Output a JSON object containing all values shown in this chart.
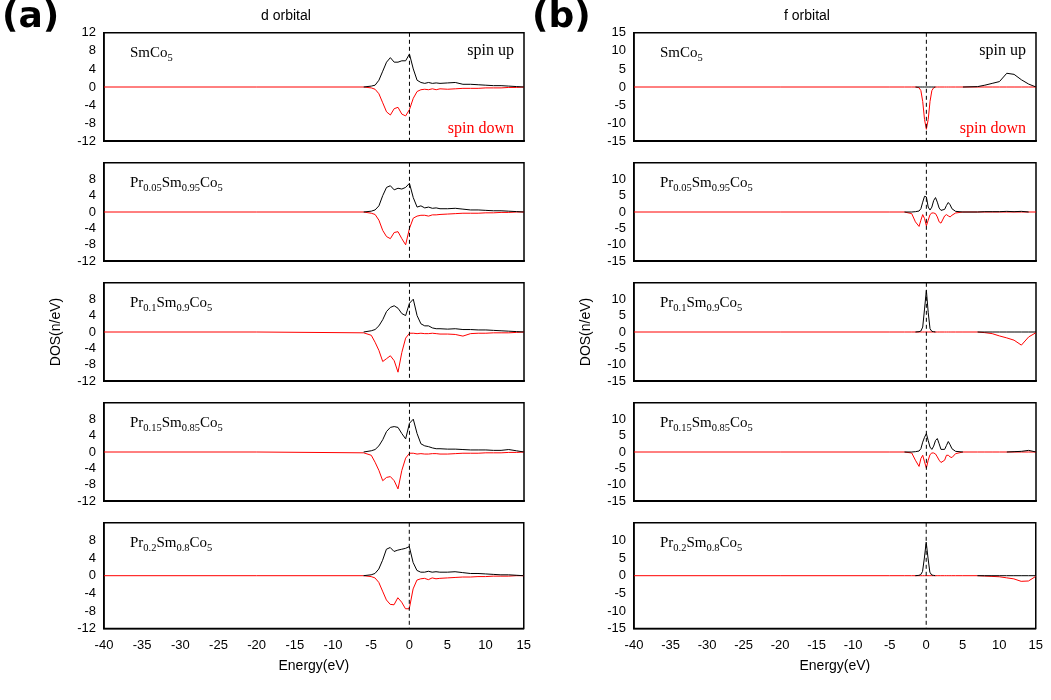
{
  "chart_data": [
    {
      "type": "line",
      "title": "d orbital",
      "annotations": [
        "(a)",
        "SmCo$_{5}$"
      ],
      "tick_labels": "y",
      "xlim": [
        -40,
        15
      ],
      "xticks": [
        -40,
        -35,
        -30,
        -25,
        -20,
        -15,
        -10,
        -5,
        0,
        5,
        10,
        15
      ],
      "ylim": [
        -12,
        12
      ],
      "yticks": [
        -12,
        -8,
        -4,
        0,
        4,
        8,
        12
      ],
      "ref_lines": [
        {
          "axis": "x",
          "value": 0,
          "line_style": "dashed",
          "color": "#000000"
        }
      ],
      "x": [
        -40,
        -20,
        -6,
        -5,
        -4.5,
        -4,
        -3.5,
        -3,
        -2.5,
        -2,
        -1.5,
        -1,
        -0.5,
        0,
        0.5,
        1,
        1.5,
        2,
        2.5,
        3,
        3.5,
        4,
        5,
        6,
        7,
        8,
        9,
        10,
        11,
        12,
        13,
        14,
        15
      ],
      "series": [
        {
          "name": "spin up",
          "color": "#000000",
          "values": [
            null,
            null,
            0,
            0.2,
            0.4,
            1.5,
            3.5,
            5.5,
            6.5,
            5.5,
            5.5,
            5.8,
            5.8,
            7.3,
            4,
            1.5,
            1,
            0.8,
            1,
            0.8,
            0.9,
            0.8,
            0.9,
            1,
            0.6,
            0.6,
            0.5,
            0.4,
            0.3,
            0.3,
            0.2,
            0.1,
            0
          ]
        },
        {
          "name": "spin down",
          "color": "#ff0000",
          "values": [
            0,
            0,
            0,
            -0.2,
            -0.5,
            -1.5,
            -3.5,
            -5.5,
            -6.2,
            -4.8,
            -4.5,
            -6,
            -6.4,
            -5,
            -2.5,
            -1,
            -0.6,
            -0.5,
            -0.6,
            -0.4,
            -0.6,
            -0.4,
            -0.5,
            -0.4,
            -0.3,
            -0.3,
            -0.3,
            -0.2,
            -0.2,
            -0.2,
            -0.1,
            -0.1,
            0
          ]
        }
      ]
    },
    {
      "type": "line",
      "annotations": [
        "Pr$_{0.05}$Sm$_{0.95}$Co$_{5}$"
      ],
      "tick_labels": "y",
      "xlim": [
        -40,
        15
      ],
      "xticks": [
        -40,
        -35,
        -30,
        -25,
        -20,
        -15,
        -10,
        -5,
        0,
        5,
        10,
        15
      ],
      "ylim": [
        -12,
        12
      ],
      "yticks": [
        -12,
        -8,
        -4,
        0,
        4,
        8
      ],
      "ref_lines": [
        {
          "axis": "x",
          "value": 0,
          "line_style": "dashed",
          "color": "#000000"
        }
      ],
      "x": [
        -40,
        -20,
        -6,
        -5,
        -4.5,
        -4,
        -3.5,
        -3,
        -2.5,
        -2,
        -1.5,
        -1,
        -0.5,
        0,
        0.5,
        1,
        1.5,
        2,
        2.5,
        3,
        3.5,
        4,
        5,
        6,
        7,
        8,
        9,
        10,
        11,
        12,
        13,
        14,
        15
      ],
      "series": [
        {
          "color": "#000000",
          "values": [
            null,
            null,
            0,
            0.2,
            0.5,
            1.5,
            4,
            6,
            6.4,
            5.4,
            5.8,
            5.6,
            6,
            7,
            3.5,
            1.2,
            1.5,
            1,
            1.2,
            0.9,
            1,
            0.8,
            0.8,
            0.9,
            0.7,
            0.5,
            0.5,
            0.4,
            0.3,
            0.3,
            0.2,
            0.1,
            0
          ]
        },
        {
          "color": "#ff0000",
          "values": [
            0,
            0,
            0,
            -0.3,
            -0.6,
            -2,
            -4.5,
            -6,
            -6.5,
            -5,
            -4.8,
            -6.5,
            -8,
            -4,
            -1.5,
            -1,
            -0.8,
            -0.8,
            -1,
            -0.7,
            -0.7,
            -0.6,
            -0.5,
            -0.4,
            -0.3,
            -0.3,
            -0.3,
            -0.2,
            -0.2,
            -0.1,
            -0.1,
            0,
            0
          ]
        }
      ]
    },
    {
      "type": "line",
      "ylabel": "DOS(n/eV)",
      "annotations": [
        "Pr$_{0.1}$Sm$_{0.9}$Co$_{5}$"
      ],
      "tick_labels": "y",
      "xlim": [
        -40,
        15
      ],
      "xticks": [
        -40,
        -35,
        -30,
        -25,
        -20,
        -15,
        -10,
        -5,
        0,
        5,
        10,
        15
      ],
      "ylim": [
        -12,
        12
      ],
      "yticks": [
        -12,
        -8,
        -4,
        0,
        4,
        8
      ],
      "ref_lines": [
        {
          "axis": "x",
          "value": 0,
          "line_style": "dashed",
          "color": "#000000"
        }
      ],
      "x": [
        -40,
        -20,
        -6,
        -5,
        -4.5,
        -4,
        -3.5,
        -3,
        -2.5,
        -2,
        -1.5,
        -1,
        -0.5,
        0,
        0.5,
        1,
        1.5,
        2,
        2.5,
        3,
        3.5,
        4,
        5,
        6,
        7,
        8,
        9,
        10,
        11,
        12,
        13,
        14,
        15
      ],
      "series": [
        {
          "color": "#000000",
          "values": [
            null,
            null,
            0,
            0.3,
            0.6,
            1.5,
            3,
            5,
            6,
            6.4,
            5.8,
            4.5,
            4,
            7,
            8,
            4,
            2,
            1.5,
            1.5,
            1,
            0.8,
            0.8,
            0.7,
            0.8,
            0.6,
            0.6,
            0.5,
            0.5,
            0.4,
            0.3,
            0.2,
            0.1,
            0
          ]
        },
        {
          "color": "#ff0000",
          "values": [
            0,
            0,
            -0.2,
            -0.8,
            -2.5,
            -4.5,
            -7.2,
            -6.5,
            -5.8,
            -7,
            -9.8,
            -5,
            -1.5,
            -0.3,
            -0.3,
            -0.4,
            -0.3,
            -0.4,
            -0.4,
            -0.3,
            -0.4,
            -0.5,
            -0.5,
            -0.6,
            -1,
            -0.4,
            -0.3,
            -0.3,
            -0.2,
            -0.2,
            -0.2,
            -0.1,
            0
          ]
        }
      ]
    },
    {
      "type": "line",
      "annotations": [
        "Pr$_{0.15}$Sm$_{0.85}$Co$_{5}$"
      ],
      "tick_labels": "y",
      "xlim": [
        -40,
        15
      ],
      "xticks": [
        -40,
        -35,
        -30,
        -25,
        -20,
        -15,
        -10,
        -5,
        0,
        5,
        10,
        15
      ],
      "ylim": [
        -12,
        12
      ],
      "yticks": [
        -12,
        -8,
        -4,
        0,
        4,
        8
      ],
      "ref_lines": [
        {
          "axis": "x",
          "value": 0,
          "line_style": "dashed",
          "color": "#000000"
        }
      ],
      "x": [
        -40,
        -20,
        -6,
        -5,
        -4.5,
        -4,
        -3.5,
        -3,
        -2.5,
        -2,
        -1.5,
        -1,
        -0.5,
        0,
        0.5,
        1,
        1.5,
        2,
        2.5,
        3,
        3.5,
        4,
        5,
        6,
        7,
        8,
        9,
        10,
        11,
        12,
        13,
        14,
        15
      ],
      "series": [
        {
          "color": "#000000",
          "values": [
            null,
            null,
            0,
            0.3,
            0.6,
            1.5,
            3,
            5,
            6,
            6.2,
            6,
            4.5,
            3.2,
            7,
            8,
            4.5,
            2,
            1.5,
            1.3,
            1,
            0.8,
            0.8,
            0.7,
            0.7,
            0.6,
            0.5,
            0.5,
            0.5,
            0.4,
            0.4,
            0.6,
            0.3,
            0
          ]
        },
        {
          "color": "#ff0000",
          "values": [
            0,
            0,
            -0.2,
            -0.8,
            -2.5,
            -4.5,
            -7,
            -6.2,
            -6,
            -7,
            -9,
            -4.5,
            -1.5,
            -0.3,
            -0.3,
            -0.5,
            -0.4,
            -0.5,
            -0.5,
            -0.4,
            -0.4,
            -0.5,
            -0.5,
            -0.4,
            -0.3,
            -0.3,
            -0.3,
            -0.2,
            -0.2,
            -0.2,
            -0.1,
            -0.1,
            0
          ]
        }
      ]
    },
    {
      "type": "line",
      "xlabel": "Energy(eV)",
      "annotations": [
        "Pr$_{0.2}$Sm$_{0.8}$Co$_{5}$"
      ],
      "xlim": [
        -40,
        15
      ],
      "xticks": [
        -40,
        -35,
        -30,
        -25,
        -20,
        -15,
        -10,
        -5,
        0,
        5,
        10,
        15
      ],
      "ylim": [
        -12,
        12
      ],
      "yticks": [
        -12,
        -8,
        -4,
        0,
        4,
        8
      ],
      "ref_lines": [
        {
          "axis": "x",
          "value": 0,
          "line_style": "dashed",
          "color": "#000000"
        }
      ],
      "x": [
        -40,
        -20,
        -6,
        -5,
        -4.5,
        -4,
        -3.5,
        -3,
        -2.5,
        -2,
        -1.5,
        -1,
        -0.5,
        0,
        0.5,
        1,
        1.5,
        2,
        2.5,
        3,
        3.5,
        4,
        5,
        6,
        7,
        8,
        9,
        10,
        11,
        12,
        13,
        14,
        15
      ],
      "series": [
        {
          "color": "#000000",
          "values": [
            null,
            null,
            0,
            0.2,
            0.5,
            1.5,
            3.5,
            6,
            6.4,
            5.5,
            5.8,
            6,
            6.2,
            6.6,
            3,
            1.2,
            0.8,
            0.8,
            1,
            0.8,
            0.9,
            0.8,
            0.8,
            0.9,
            0.7,
            0.5,
            0.5,
            0.4,
            0.3,
            0.2,
            0.2,
            0.1,
            0
          ]
        },
        {
          "color": "#ff0000",
          "values": [
            0,
            0,
            0,
            -0.2,
            -0.5,
            -1.5,
            -3.5,
            -5.5,
            -6.5,
            -6.6,
            -5,
            -6,
            -7.5,
            -7.5,
            -3,
            -1,
            -0.7,
            -0.6,
            -0.9,
            -0.5,
            -0.7,
            -0.6,
            -0.5,
            -0.4,
            -0.3,
            -0.3,
            -0.2,
            -0.2,
            -0.1,
            -0.1,
            -0.1,
            0,
            0
          ]
        }
      ]
    },
    {
      "type": "line",
      "title": "f orbital",
      "annotations": [
        "(b)",
        "SmCo$_{5}$"
      ],
      "tick_labels": "y",
      "xlim": [
        -40,
        15
      ],
      "xticks": [
        -40,
        -35,
        -30,
        -25,
        -20,
        -15,
        -10,
        -5,
        0,
        5,
        10,
        15
      ],
      "ylim": [
        -15,
        15
      ],
      "yticks": [
        -15,
        -10,
        -5,
        0,
        5,
        10,
        15
      ],
      "ref_lines": [
        {
          "axis": "x",
          "value": 0,
          "line_style": "dashed",
          "color": "#000000"
        }
      ],
      "x": [
        -40,
        -20,
        -5,
        -3,
        -2,
        -1.5,
        -1,
        -0.75,
        -0.5,
        -0.25,
        0,
        0.25,
        0.5,
        0.75,
        1,
        1.25,
        1.5,
        1.75,
        2,
        2.5,
        2.75,
        3,
        3.25,
        3.5,
        4,
        5,
        7,
        8,
        9,
        10,
        11,
        12,
        13,
        14,
        15
      ],
      "series": [
        {
          "name": "spin up",
          "color": "#000000",
          "values": [
            null,
            null,
            null,
            null,
            null,
            0,
            0,
            0,
            0,
            0,
            0,
            0,
            0,
            0,
            0,
            0,
            null,
            null,
            null,
            null,
            null,
            null,
            null,
            null,
            null,
            0,
            0.1,
            0.5,
            1,
            1.5,
            3.8,
            3.5,
            2,
            0.8,
            0
          ]
        },
        {
          "name": "spin down",
          "color": "#ff0000",
          "values": [
            0,
            0,
            0,
            0,
            0,
            0,
            -0.2,
            -1,
            -4,
            -9,
            -11.7,
            -9,
            -4,
            -1,
            -0.2,
            0,
            0,
            0,
            0,
            0,
            0,
            0,
            0,
            0,
            0,
            0,
            0,
            0,
            0,
            0,
            0,
            0,
            0,
            0,
            0
          ]
        }
      ]
    },
    {
      "type": "line",
      "annotations": [
        "Pr$_{0.05}$Sm$_{0.95}$Co$_{5}$"
      ],
      "tick_labels": "y",
      "xlim": [
        -40,
        15
      ],
      "xticks": [
        -40,
        -35,
        -30,
        -25,
        -20,
        -15,
        -10,
        -5,
        0,
        5,
        10,
        15
      ],
      "ylim": [
        -15,
        15
      ],
      "yticks": [
        -15,
        -10,
        -5,
        0,
        5,
        10
      ],
      "ref_lines": [
        {
          "axis": "x",
          "value": 0,
          "line_style": "dashed",
          "color": "#000000"
        }
      ],
      "x": [
        -40,
        -20,
        -5,
        -3,
        -2,
        -1.5,
        -1,
        -0.75,
        -0.5,
        -0.25,
        0,
        0.25,
        0.5,
        0.75,
        1,
        1.25,
        1.5,
        1.75,
        2,
        2.5,
        2.75,
        3,
        3.25,
        3.5,
        4,
        5,
        7,
        8,
        9,
        10,
        11,
        12,
        13,
        14,
        15
      ],
      "series": [
        {
          "color": "#000000",
          "values": [
            null,
            null,
            null,
            0,
            0,
            0.1,
            0.3,
            1,
            3,
            4.8,
            4.6,
            1.5,
            0.6,
            1.5,
            3.5,
            4.4,
            3,
            1.2,
            0.5,
            0.8,
            2,
            2.9,
            2.2,
            1,
            0.2,
            0,
            0,
            0.1,
            0.1,
            0.1,
            0.2,
            0.1,
            0.2,
            0,
            null
          ]
        },
        {
          "color": "#ff0000",
          "values": [
            0,
            0,
            0,
            0,
            -0.5,
            -3,
            -4.4,
            -2.5,
            -0.8,
            -2,
            -4.2,
            -2.5,
            -0.8,
            -0.3,
            -0.3,
            -0.5,
            -1.5,
            -3,
            -3.4,
            -1.2,
            -0.8,
            -1.2,
            -1.5,
            -1,
            -0.3,
            0,
            0,
            0,
            0,
            0,
            0,
            0,
            0,
            0,
            0
          ]
        }
      ]
    },
    {
      "type": "line",
      "ylabel": "DOS(n/eV)",
      "annotations": [
        "Pr$_{0.1}$Sm$_{0.9}$Co$_{5}$"
      ],
      "tick_labels": "y",
      "xlim": [
        -40,
        15
      ],
      "xticks": [
        -40,
        -35,
        -30,
        -25,
        -20,
        -15,
        -10,
        -5,
        0,
        5,
        10,
        15
      ],
      "ylim": [
        -15,
        15
      ],
      "yticks": [
        -15,
        -10,
        -5,
        0,
        5,
        10
      ],
      "ref_lines": [
        {
          "axis": "x",
          "value": 0,
          "line_style": "dashed",
          "color": "#000000"
        }
      ],
      "x": [
        -40,
        -20,
        -5,
        -3,
        -2,
        -1.5,
        -1,
        -0.75,
        -0.5,
        -0.25,
        0,
        0.25,
        0.5,
        0.75,
        1,
        1.25,
        1.5,
        1.75,
        2,
        2.5,
        2.75,
        3,
        3.25,
        3.5,
        4,
        5,
        7,
        8,
        9,
        10,
        11,
        12,
        13,
        14,
        15
      ],
      "series": [
        {
          "color": "#000000",
          "values": [
            null,
            null,
            null,
            null,
            null,
            0,
            0.1,
            0.3,
            1.5,
            7,
            12.7,
            6,
            1,
            0.2,
            0.1,
            0,
            null,
            null,
            null,
            null,
            null,
            null,
            null,
            null,
            null,
            null,
            0,
            0,
            0,
            0,
            0,
            0,
            0,
            0,
            0
          ]
        },
        {
          "color": "#ff0000",
          "values": [
            0,
            0,
            0,
            0,
            0,
            0,
            0,
            0,
            0,
            0,
            0,
            0,
            0,
            0,
            0,
            0,
            0,
            0,
            0,
            0,
            0,
            0,
            0,
            0,
            0,
            0,
            0,
            -0.2,
            -0.5,
            -1.2,
            -1.8,
            -2.5,
            -4,
            -1.5,
            -0.2
          ]
        }
      ]
    },
    {
      "type": "line",
      "annotations": [
        "Pr$_{0.15}$Sm$_{0.85}$Co$_{5}$"
      ],
      "tick_labels": "y",
      "xlim": [
        -40,
        15
      ],
      "xticks": [
        -40,
        -35,
        -30,
        -25,
        -20,
        -15,
        -10,
        -5,
        0,
        5,
        10,
        15
      ],
      "ylim": [
        -15,
        15
      ],
      "yticks": [
        -15,
        -10,
        -5,
        0,
        5,
        10
      ],
      "ref_lines": [
        {
          "axis": "x",
          "value": 0,
          "line_style": "dashed",
          "color": "#000000"
        }
      ],
      "x": [
        -40,
        -20,
        -5,
        -3,
        -2,
        -1.5,
        -1,
        -0.75,
        -0.5,
        -0.25,
        0,
        0.25,
        0.5,
        0.75,
        1,
        1.25,
        1.5,
        1.75,
        2,
        2.5,
        2.75,
        3,
        3.25,
        3.5,
        4,
        5,
        7,
        8,
        9,
        10,
        11,
        12,
        13,
        14,
        15
      ],
      "series": [
        {
          "color": "#000000",
          "values": [
            null,
            null,
            null,
            0,
            0,
            0.1,
            0.3,
            1,
            3,
            4.5,
            5.6,
            3.5,
            1.5,
            0.8,
            1.8,
            3.5,
            4.1,
            2.5,
            0.8,
            0.8,
            2,
            3.2,
            2.2,
            1,
            0.2,
            0,
            null,
            null,
            null,
            null,
            0,
            0.1,
            0.2,
            0.5,
            0
          ]
        },
        {
          "color": "#ff0000",
          "values": [
            0,
            0,
            0,
            0,
            -0.3,
            -2.5,
            -4.4,
            -2,
            -1,
            -3,
            -4.9,
            -2.5,
            -0.8,
            -0.3,
            -0.3,
            -0.6,
            -1.5,
            -2.5,
            -3.2,
            -2.5,
            -1,
            -1,
            -1.5,
            -1.7,
            -0.5,
            0,
            0,
            0,
            0,
            0,
            0,
            0,
            0,
            0,
            0
          ]
        }
      ]
    },
    {
      "type": "line",
      "xlabel": "Energy(eV)",
      "annotations": [
        "Pr$_{0.2}$Sm$_{0.8}$Co$_{5}$"
      ],
      "xlim": [
        -40,
        15
      ],
      "xticks": [
        -40,
        -35,
        -30,
        -25,
        -20,
        -15,
        -10,
        -5,
        0,
        5,
        10,
        15
      ],
      "ylim": [
        -15,
        15
      ],
      "yticks": [
        -15,
        -10,
        -5,
        0,
        5,
        10
      ],
      "ref_lines": [
        {
          "axis": "x",
          "value": 0,
          "line_style": "dashed",
          "color": "#000000"
        }
      ],
      "x": [
        -40,
        -20,
        -5,
        -3,
        -2,
        -1.5,
        -1,
        -0.75,
        -0.5,
        -0.25,
        0,
        0.25,
        0.5,
        0.75,
        1,
        1.25,
        1.5,
        1.75,
        2,
        2.5,
        2.75,
        3,
        3.25,
        3.5,
        4,
        5,
        7,
        8,
        9,
        10,
        11,
        12,
        13,
        14,
        15
      ],
      "series": [
        {
          "color": "#000000",
          "values": [
            null,
            null,
            null,
            null,
            null,
            0,
            0.1,
            0.3,
            1.2,
            5,
            9.5,
            5,
            1,
            0.2,
            0.1,
            0,
            null,
            null,
            null,
            null,
            null,
            null,
            null,
            null,
            null,
            null,
            0,
            0,
            0,
            0,
            0,
            0,
            0,
            0,
            0
          ]
        },
        {
          "color": "#ff0000",
          "values": [
            0,
            0,
            0,
            0,
            0,
            0,
            0,
            0,
            0,
            0,
            0,
            0,
            0,
            0,
            0,
            0,
            0,
            0,
            0,
            0,
            0,
            0,
            0,
            0,
            0,
            0,
            0,
            -0.1,
            -0.2,
            -0.3,
            -0.6,
            -0.9,
            -1.6,
            -1.5,
            -0.2
          ]
        }
      ]
    }
  ]
}
